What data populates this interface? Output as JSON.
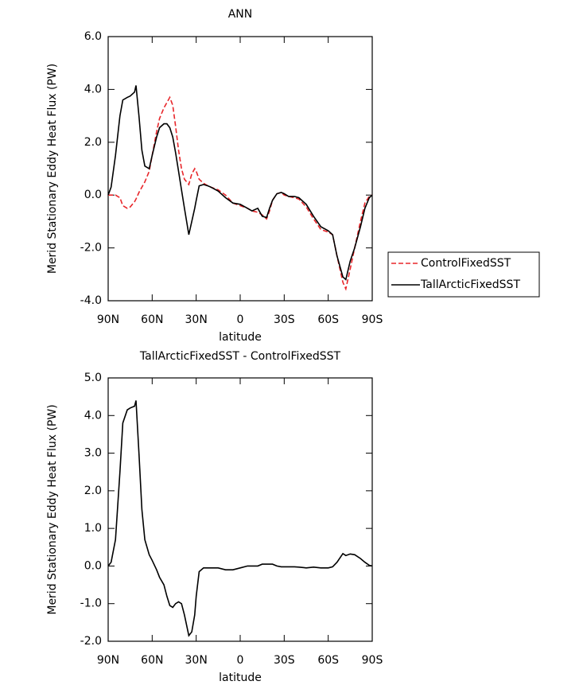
{
  "chart_data": [
    {
      "type": "line",
      "title": "ANN",
      "xlabel": "latitude",
      "ylabel": "Merid Stationary Eddy Heat Flux (PW)",
      "x": [
        90,
        88,
        85,
        82,
        80,
        77,
        75,
        72,
        71,
        69,
        67,
        65,
        62,
        60,
        57,
        55,
        52,
        50,
        48,
        46,
        44,
        42,
        40,
        38,
        35,
        33,
        31,
        30,
        28,
        25,
        22,
        20,
        15,
        10,
        5,
        0,
        -5,
        -8,
        -12,
        -15,
        -18,
        -20,
        -22,
        -25,
        -28,
        -30,
        -33,
        -37,
        -40,
        -45,
        -50,
        -55,
        -60,
        -63,
        -66,
        -70,
        -72,
        -75,
        -78,
        -82,
        -85,
        -88,
        -90
      ],
      "series": [
        {
          "name": "ControlFixedSST",
          "color": "#e8262a",
          "style": "dashed",
          "values": [
            0,
            0,
            0,
            -0.1,
            -0.4,
            -0.5,
            -0.45,
            -0.25,
            -0.15,
            0.1,
            0.3,
            0.5,
            0.9,
            1.5,
            2.4,
            2.9,
            3.3,
            3.5,
            3.7,
            3.4,
            2.6,
            1.7,
            1.0,
            0.6,
            0.4,
            0.8,
            1.0,
            0.9,
            0.6,
            0.45,
            0.35,
            0.3,
            0.2,
            0.0,
            -0.3,
            -0.4,
            -0.5,
            -0.6,
            -0.65,
            -0.75,
            -0.9,
            -0.6,
            -0.2,
            0.05,
            0.1,
            0.0,
            -0.05,
            -0.1,
            -0.15,
            -0.45,
            -0.9,
            -1.3,
            -1.4,
            -1.5,
            -2.3,
            -3.3,
            -3.55,
            -2.8,
            -2.0,
            -1.0,
            -0.3,
            -0.05,
            0
          ]
        },
        {
          "name": "TallArcticFixedSST",
          "color": "#000000",
          "style": "solid",
          "values": [
            0,
            0.3,
            1.5,
            3.0,
            3.6,
            3.7,
            3.75,
            3.9,
            4.15,
            3.0,
            1.7,
            1.1,
            1.0,
            1.5,
            2.2,
            2.55,
            2.7,
            2.7,
            2.55,
            2.2,
            1.6,
            0.9,
            0.2,
            -0.5,
            -1.5,
            -1.0,
            -0.5,
            -0.2,
            0.35,
            0.4,
            0.35,
            0.3,
            0.15,
            -0.1,
            -0.3,
            -0.35,
            -0.5,
            -0.6,
            -0.5,
            -0.8,
            -0.85,
            -0.5,
            -0.2,
            0.05,
            0.1,
            0.05,
            -0.05,
            -0.05,
            -0.1,
            -0.35,
            -0.8,
            -1.2,
            -1.35,
            -1.5,
            -2.3,
            -3.1,
            -3.2,
            -2.5,
            -2.0,
            -1.2,
            -0.5,
            -0.1,
            0
          ]
        }
      ],
      "xlim": [
        90,
        -90
      ],
      "xticks": [
        {
          "value": 90,
          "label": "90N"
        },
        {
          "value": 60,
          "label": "60N"
        },
        {
          "value": 30,
          "label": "30N"
        },
        0,
        {
          "value": -30,
          "label": "30S"
        },
        {
          "value": -60,
          "label": "60S"
        },
        {
          "value": -90,
          "label": "90S"
        }
      ],
      "ylim": [
        -4,
        6
      ],
      "yticks": [
        {
          "value": -4,
          "label": "-4.0"
        },
        {
          "value": -2,
          "label": "-2.0"
        },
        {
          "value": 0,
          "label": "0.0"
        },
        {
          "value": 2,
          "label": "2.0"
        },
        {
          "value": 4,
          "label": "4.0"
        },
        {
          "value": 6,
          "label": "6.0"
        }
      ],
      "legend": "right"
    },
    {
      "type": "line",
      "title": "TallArcticFixedSST - ControlFixedSST",
      "xlabel": "latitude",
      "ylabel": "Merid Stationary Eddy Heat Flux (PW)",
      "x": [
        90,
        88,
        85,
        82,
        80,
        77,
        75,
        72,
        71,
        69,
        67,
        65,
        62,
        60,
        57,
        55,
        52,
        50,
        48,
        46,
        44,
        42,
        40,
        38,
        35,
        33,
        31,
        30,
        28,
        25,
        22,
        20,
        15,
        10,
        5,
        0,
        -5,
        -8,
        -12,
        -15,
        -18,
        -20,
        -22,
        -25,
        -28,
        -30,
        -33,
        -37,
        -40,
        -45,
        -50,
        -55,
        -60,
        -63,
        -66,
        -70,
        -72,
        -75,
        -78,
        -82,
        -85,
        -88,
        -90
      ],
      "series": [
        {
          "color": "#000000",
          "style": "solid",
          "values": [
            0,
            0.1,
            0.7,
            2.5,
            3.8,
            4.15,
            4.2,
            4.25,
            4.4,
            3.0,
            1.5,
            0.7,
            0.3,
            0.15,
            -0.1,
            -0.3,
            -0.5,
            -0.8,
            -1.05,
            -1.1,
            -1.0,
            -0.95,
            -1.0,
            -1.3,
            -1.85,
            -1.75,
            -1.3,
            -0.8,
            -0.15,
            -0.05,
            -0.05,
            -0.05,
            -0.05,
            -0.1,
            -0.1,
            -0.05,
            0.0,
            0.0,
            0.0,
            0.05,
            0.05,
            0.05,
            0.05,
            0.0,
            -0.02,
            -0.02,
            -0.02,
            -0.02,
            -0.03,
            -0.05,
            -0.03,
            -0.05,
            -0.05,
            -0.02,
            0.1,
            0.33,
            0.28,
            0.32,
            0.3,
            0.2,
            0.1,
            0.02,
            0
          ]
        }
      ],
      "xlim": [
        90,
        -90
      ],
      "xticks": [
        {
          "value": 90,
          "label": "90N"
        },
        {
          "value": 60,
          "label": "60N"
        },
        {
          "value": 30,
          "label": "30N"
        },
        0,
        {
          "value": -30,
          "label": "30S"
        },
        {
          "value": -60,
          "label": "60S"
        },
        {
          "value": -90,
          "label": "90S"
        }
      ],
      "ylim": [
        -2,
        5
      ],
      "yticks": [
        {
          "value": -2,
          "label": "-2.0"
        },
        {
          "value": -1,
          "label": "-1.0"
        },
        {
          "value": 0,
          "label": "0.0"
        },
        {
          "value": 1,
          "label": "1.0"
        },
        {
          "value": 2,
          "label": "2.0"
        },
        {
          "value": 3,
          "label": "3.0"
        },
        {
          "value": 4,
          "label": "4.0"
        },
        {
          "value": 5,
          "label": "5.0"
        }
      ]
    }
  ]
}
